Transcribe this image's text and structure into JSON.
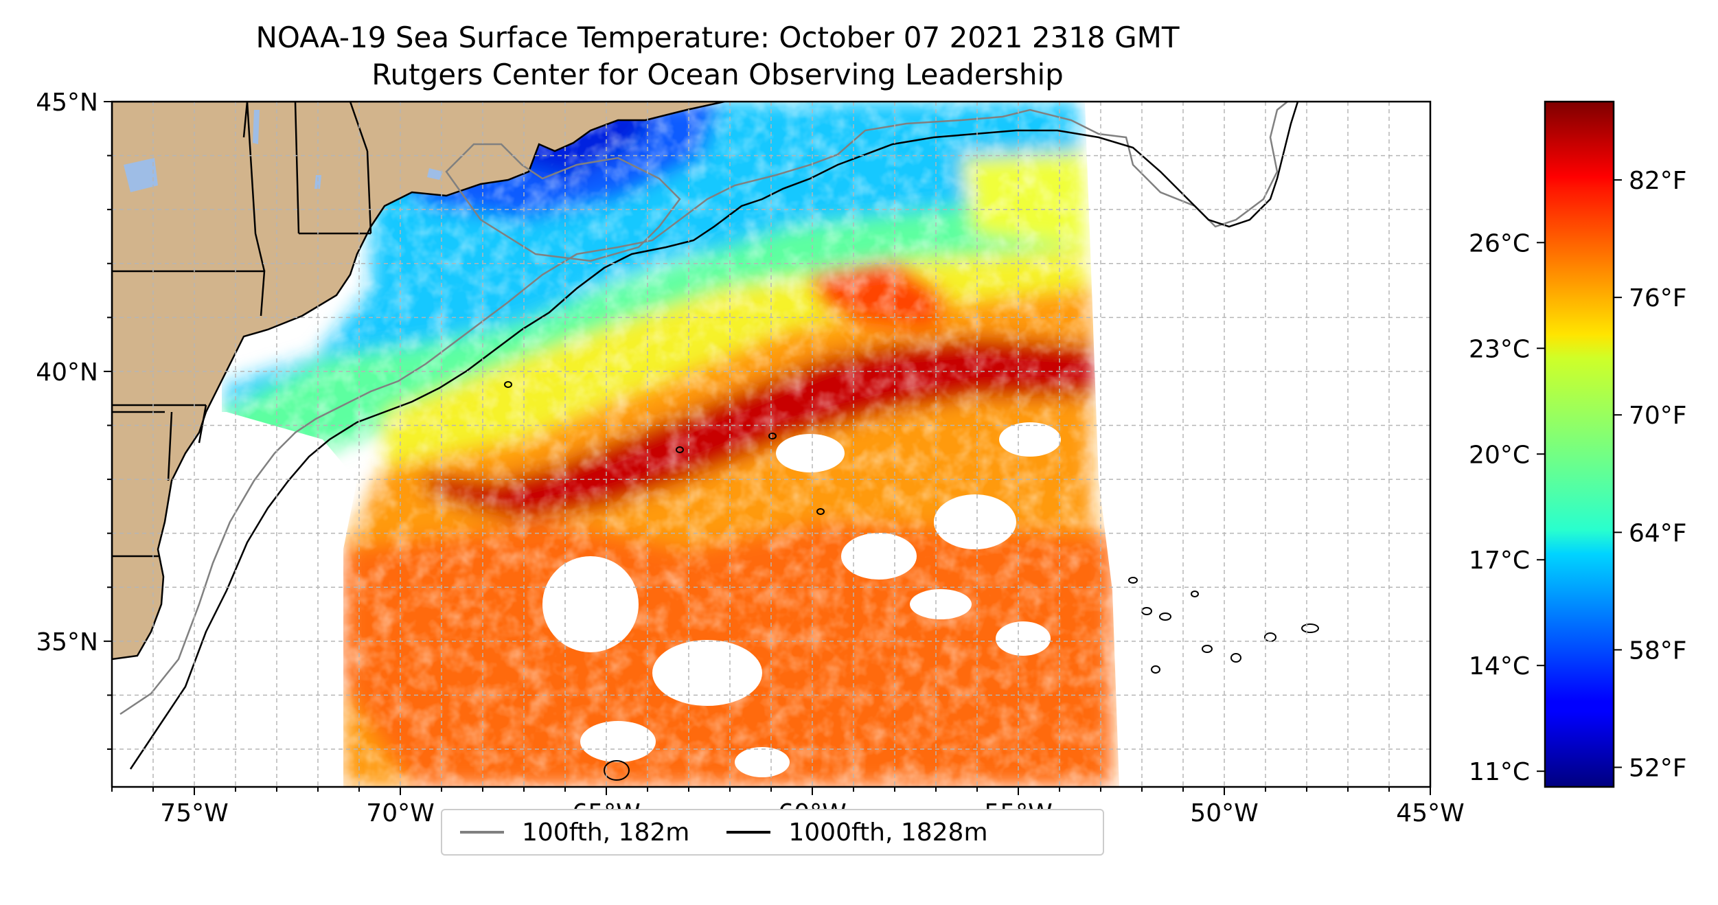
{
  "title": {
    "line1": "NOAA-19 Sea Surface Temperature: October 07 2021 2318 GMT",
    "line2": "Rutgers Center for Ocean Observing Leadership"
  },
  "map": {
    "lon_range": [
      -77,
      -45
    ],
    "lat_range": [
      32.3,
      45
    ],
    "lon_ticks": [
      "75°W",
      "70°W",
      "65°W",
      "60°W",
      "55°W",
      "50°W",
      "45°W"
    ],
    "lon_tick_values": [
      -75,
      -70,
      -65,
      -60,
      -55,
      -50,
      -45
    ],
    "lat_ticks": [
      "45°N",
      "40°N",
      "35°N"
    ],
    "lat_tick_values": [
      45,
      40,
      35
    ],
    "grid": true,
    "colors": {
      "land": "#d2b48c",
      "lakes": "#9ebde6",
      "coastline": "#000000",
      "isobath_100": "#808080",
      "isobath_1000": "#000000"
    }
  },
  "legend": {
    "placement": "bottom-center",
    "items": [
      {
        "label": "100fth, 182m",
        "color": "#808080"
      },
      {
        "label": "1000fth, 1828m",
        "color": "#000000"
      }
    ]
  },
  "colorbar": {
    "colormap": "jet",
    "range_f": [
      51,
      86
    ],
    "fahrenheit_ticks": [
      "52°F",
      "58°F",
      "64°F",
      "70°F",
      "76°F",
      "82°F"
    ],
    "fahrenheit_values": [
      52,
      58,
      64,
      70,
      76,
      82
    ],
    "celsius_ticks": [
      "11°C",
      "14°C",
      "17°C",
      "20°C",
      "23°C",
      "26°C"
    ],
    "celsius_values": [
      11,
      14,
      17,
      20,
      23,
      26
    ]
  }
}
